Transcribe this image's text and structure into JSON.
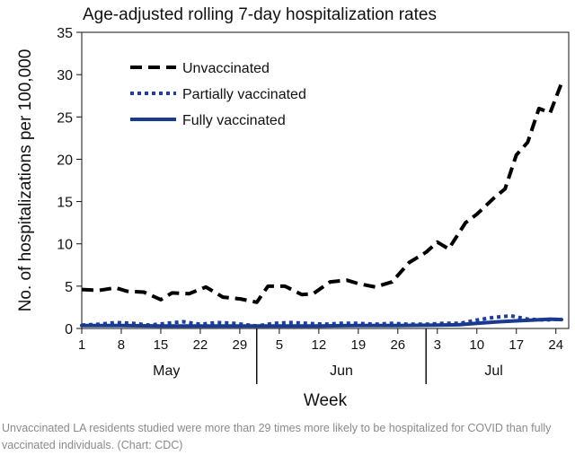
{
  "caption": "Unvaccinated LA residents studied were more than 29 times more likely to be hospitalized for COVID than fully vaccinated individuals. (Chart: CDC)",
  "chart_data": {
    "type": "line",
    "title": "Age-adjusted rolling 7-day hospitalization rates",
    "xlabel": "Week",
    "ylabel": "No. of hospitalizations per 100,000",
    "ylim": [
      0,
      35
    ],
    "yticks": [
      0,
      5,
      10,
      15,
      20,
      25,
      30,
      35
    ],
    "x_domain": [
      "2021-05-01",
      "2021-07-25"
    ],
    "xticks": [
      {
        "date": "2021-05-01",
        "label": "1"
      },
      {
        "date": "2021-05-08",
        "label": "8"
      },
      {
        "date": "2021-05-15",
        "label": "15"
      },
      {
        "date": "2021-05-22",
        "label": "22"
      },
      {
        "date": "2021-05-29",
        "label": "29"
      },
      {
        "date": "2021-06-05",
        "label": "5"
      },
      {
        "date": "2021-06-12",
        "label": "12"
      },
      {
        "date": "2021-06-19",
        "label": "19"
      },
      {
        "date": "2021-06-26",
        "label": "26"
      },
      {
        "date": "2021-07-03",
        "label": "3"
      },
      {
        "date": "2021-07-10",
        "label": "10"
      },
      {
        "date": "2021-07-17",
        "label": "17"
      },
      {
        "date": "2021-07-24",
        "label": "24"
      }
    ],
    "months": [
      {
        "label": "May",
        "center": "2021-05-16"
      },
      {
        "label": "Jun",
        "center": "2021-06-16"
      },
      {
        "label": "Jul",
        "center": "2021-07-13"
      }
    ],
    "month_dividers": [
      "2021-06-01",
      "2021-07-01"
    ],
    "grid": false,
    "legend": "top-left",
    "series": [
      {
        "name": "Unvaccinated",
        "style": "dashed",
        "color": "#000000",
        "x": [
          "2021-05-01",
          "2021-05-04",
          "2021-05-07",
          "2021-05-09",
          "2021-05-12",
          "2021-05-15",
          "2021-05-17",
          "2021-05-20",
          "2021-05-23",
          "2021-05-26",
          "2021-05-29",
          "2021-06-01",
          "2021-06-03",
          "2021-06-06",
          "2021-06-09",
          "2021-06-11",
          "2021-06-14",
          "2021-06-17",
          "2021-06-19",
          "2021-06-22",
          "2021-06-25",
          "2021-06-28",
          "2021-07-01",
          "2021-07-03",
          "2021-07-05",
          "2021-07-08",
          "2021-07-10",
          "2021-07-13",
          "2021-07-15",
          "2021-07-17",
          "2021-07-19",
          "2021-07-21",
          "2021-07-23",
          "2021-07-25"
        ],
        "y": [
          4.6,
          4.5,
          4.8,
          4.4,
          4.3,
          3.4,
          4.2,
          4.1,
          4.9,
          3.7,
          3.5,
          3.1,
          5.0,
          5.0,
          4.0,
          4.1,
          5.5,
          5.7,
          5.3,
          4.9,
          5.5,
          7.8,
          9.0,
          10.2,
          9.4,
          12.5,
          13.5,
          15.4,
          16.5,
          20.5,
          22.0,
          26.0,
          25.5,
          29.0
        ]
      },
      {
        "name": "Partially vaccinated",
        "style": "dotted",
        "color": "#1f3f9c",
        "x": [
          "2021-05-01",
          "2021-05-04",
          "2021-05-07",
          "2021-05-10",
          "2021-05-13",
          "2021-05-16",
          "2021-05-19",
          "2021-05-22",
          "2021-05-25",
          "2021-05-28",
          "2021-06-01",
          "2021-06-04",
          "2021-06-07",
          "2021-06-10",
          "2021-06-13",
          "2021-06-16",
          "2021-06-19",
          "2021-06-22",
          "2021-06-25",
          "2021-06-28",
          "2021-07-01",
          "2021-07-04",
          "2021-07-07",
          "2021-07-10",
          "2021-07-13",
          "2021-07-16",
          "2021-07-19",
          "2021-07-22",
          "2021-07-25"
        ],
        "y": [
          0.4,
          0.5,
          0.7,
          0.6,
          0.4,
          0.6,
          0.8,
          0.5,
          0.7,
          0.6,
          0.3,
          0.6,
          0.7,
          0.6,
          0.5,
          0.6,
          0.6,
          0.5,
          0.6,
          0.5,
          0.5,
          0.6,
          0.6,
          1.0,
          1.3,
          1.5,
          1.1,
          1.0,
          1.1
        ]
      },
      {
        "name": "Fully vaccinated",
        "style": "solid",
        "color": "#1a3a8f",
        "x": [
          "2021-05-01",
          "2021-05-08",
          "2021-05-15",
          "2021-05-22",
          "2021-05-29",
          "2021-06-05",
          "2021-06-12",
          "2021-06-19",
          "2021-06-26",
          "2021-07-03",
          "2021-07-07",
          "2021-07-10",
          "2021-07-14",
          "2021-07-17",
          "2021-07-20",
          "2021-07-23",
          "2021-07-25"
        ],
        "y": [
          0.35,
          0.35,
          0.3,
          0.3,
          0.3,
          0.3,
          0.3,
          0.35,
          0.35,
          0.4,
          0.45,
          0.6,
          0.8,
          0.9,
          1.0,
          1.1,
          1.05
        ]
      }
    ]
  }
}
